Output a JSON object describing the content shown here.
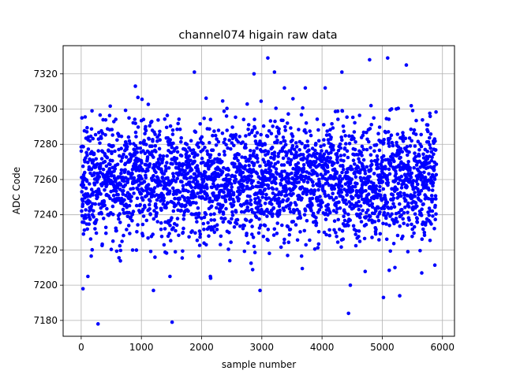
{
  "chart_data": {
    "type": "scatter",
    "title": "channel074 higain raw data",
    "xlabel": "sample number",
    "ylabel": "ADC Code",
    "xlim": [
      -300,
      6200
    ],
    "ylim": [
      7171,
      7336
    ],
    "xticks": [
      0,
      1000,
      2000,
      3000,
      4000,
      5000,
      6000
    ],
    "yticks": [
      7180,
      7200,
      7220,
      7240,
      7260,
      7280,
      7300,
      7320
    ],
    "grid": true,
    "marker_color": "#0000ff",
    "series": [
      {
        "n_points": 5900,
        "x_range": [
          0,
          5900
        ],
        "y_center": 7259,
        "y_bulk_range": [
          7235,
          7285
        ],
        "outliers": [
          {
            "x": 30,
            "y": 7198
          },
          {
            "x": 280,
            "y": 7178
          },
          {
            "x": 1200,
            "y": 7197
          },
          {
            "x": 1510,
            "y": 7179
          },
          {
            "x": 1880,
            "y": 7321
          },
          {
            "x": 2150,
            "y": 7204
          },
          {
            "x": 2970,
            "y": 7197
          },
          {
            "x": 3100,
            "y": 7329
          },
          {
            "x": 3210,
            "y": 7321
          },
          {
            "x": 4330,
            "y": 7321
          },
          {
            "x": 4440,
            "y": 7184
          },
          {
            "x": 4470,
            "y": 7200
          },
          {
            "x": 4790,
            "y": 7328
          },
          {
            "x": 5020,
            "y": 7193
          },
          {
            "x": 5090,
            "y": 7329
          },
          {
            "x": 5290,
            "y": 7194
          },
          {
            "x": 5400,
            "y": 7325
          },
          {
            "x": 900,
            "y": 7313
          },
          {
            "x": 2870,
            "y": 7320
          }
        ]
      }
    ]
  }
}
